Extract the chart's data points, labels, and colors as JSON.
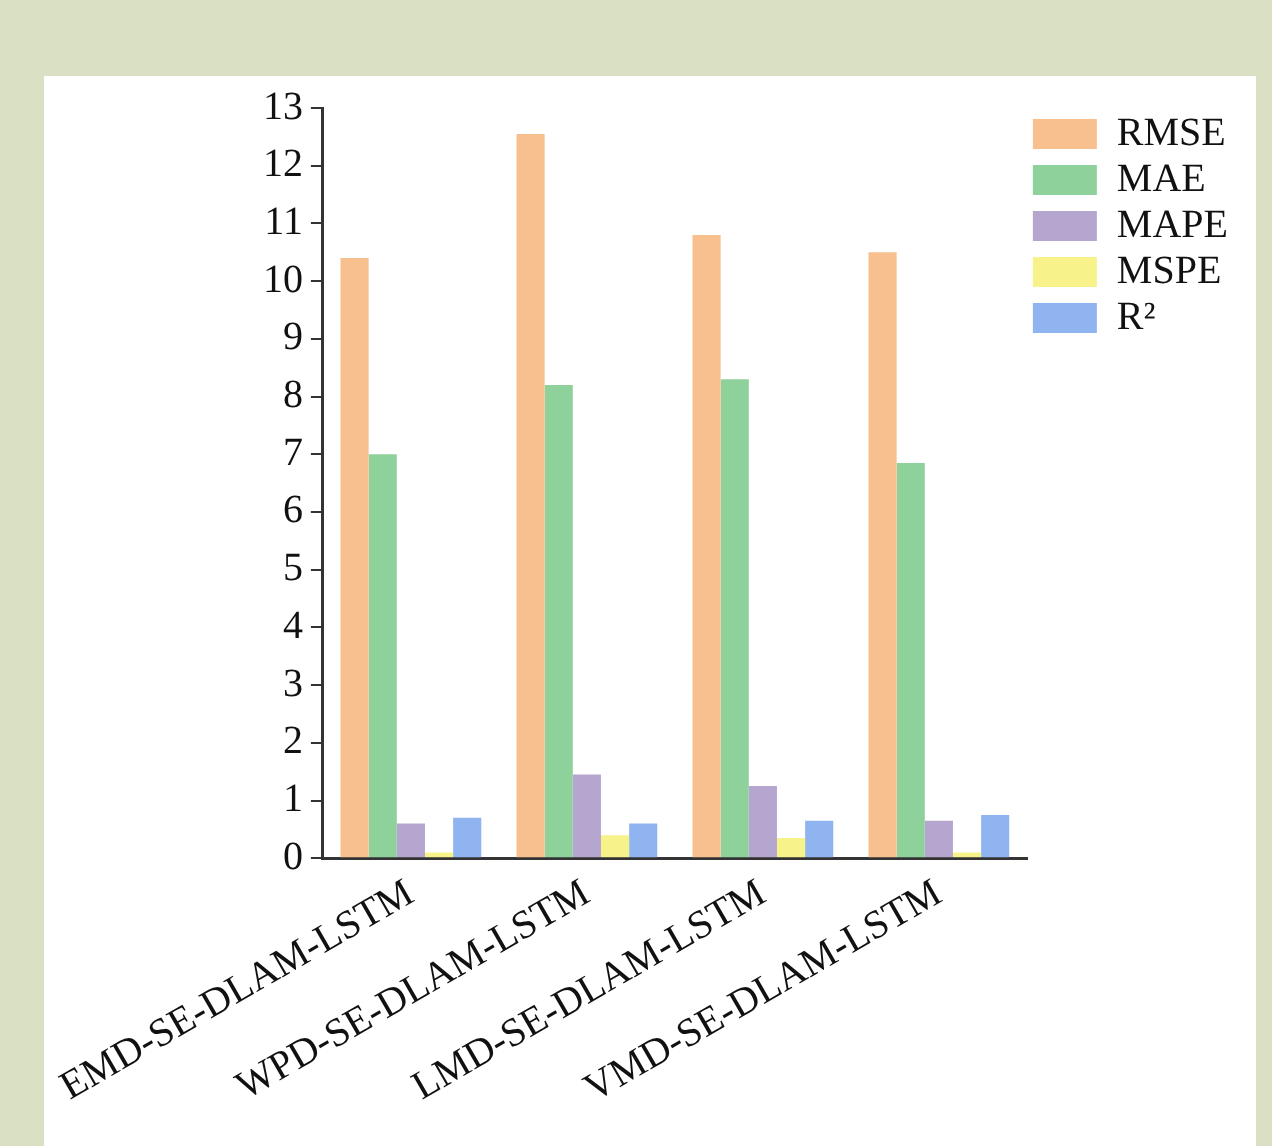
{
  "chart_data": {
    "type": "bar",
    "categories": [
      "EMD-SE-DLAM-LSTM",
      "WPD-SE-DLAM-LSTM",
      "LMD-SE-DLAM-LSTM",
      "VMD-SE-DLAM-LSTM"
    ],
    "series": [
      {
        "name": "RMSE",
        "color": "#f9c08f",
        "values": [
          10.4,
          12.55,
          10.8,
          10.5
        ]
      },
      {
        "name": "MAE",
        "color": "#8fd19a",
        "values": [
          7.0,
          8.2,
          8.3,
          6.85
        ]
      },
      {
        "name": "MAPE",
        "color": "#b5a6d0",
        "values": [
          0.6,
          1.45,
          1.25,
          0.65
        ]
      },
      {
        "name": "MSPE",
        "color": "#f7f38a",
        "values": [
          0.1,
          0.4,
          0.35,
          0.1
        ]
      },
      {
        "name": "R²",
        "color": "#8fb4ef",
        "values": [
          0.7,
          0.6,
          0.65,
          0.75
        ]
      }
    ],
    "ylim": [
      0,
      13
    ],
    "yticks": [
      0,
      1,
      2,
      3,
      4,
      5,
      6,
      7,
      8,
      9,
      10,
      11,
      12,
      13
    ],
    "grid": false,
    "legend": "top right"
  }
}
